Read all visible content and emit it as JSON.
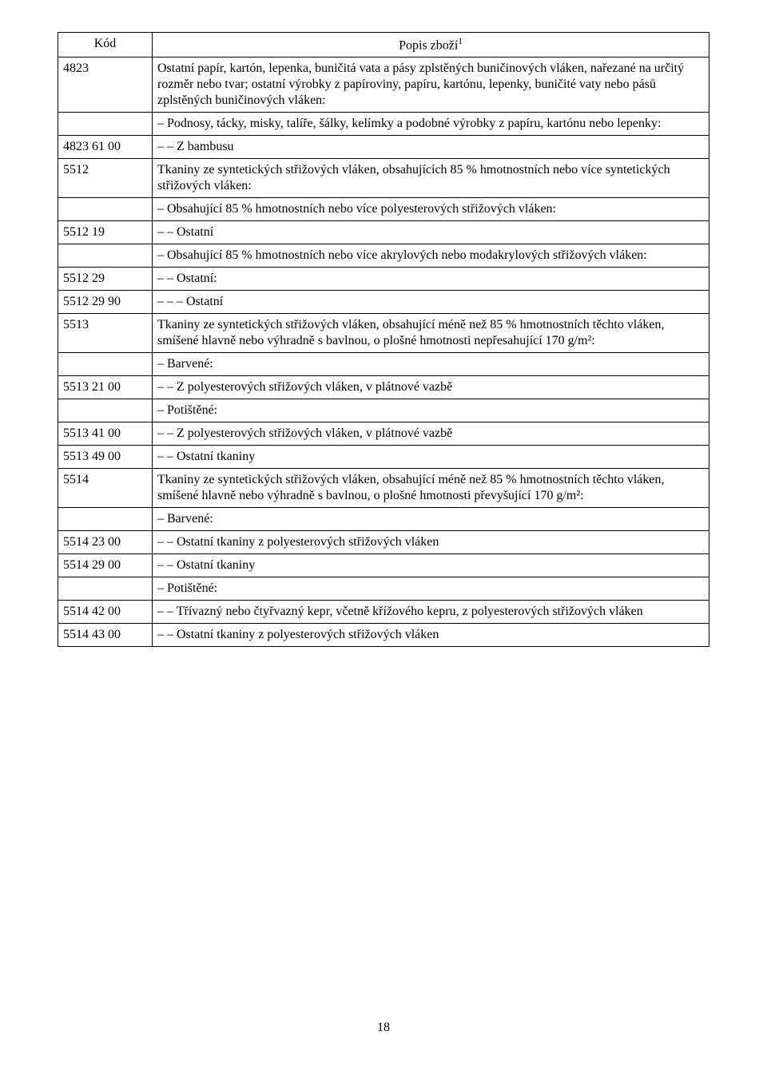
{
  "header": {
    "code_label": "Kód",
    "desc_label_prefix": "Popis zboží",
    "desc_label_sup": "1"
  },
  "rows": [
    {
      "code": "4823",
      "desc": "Ostatní papír, kartón, lepenka, buničitá vata a pásy zplstěných buničinových vláken, nařezané na určitý rozměr nebo tvar; ostatní výrobky z papíroviny, papíru, kartónu, lepenky, buničité vaty nebo pásů zplstěných buničinových vláken:"
    },
    {
      "code": "",
      "desc": "– Podnosy, tácky, misky, talíře, šálky, kelímky a podobné výrobky z papíru, kartónu nebo lepenky:"
    },
    {
      "code": "4823 61 00",
      "desc": "– – Z bambusu"
    },
    {
      "code": "5512",
      "desc": "Tkaniny ze syntetických střižových vláken, obsahujících 85 % hmotnostních nebo více syntetických střižových vláken:"
    },
    {
      "code": "",
      "desc": "– Obsahující 85 % hmotnostních nebo více polyesterových střižových vláken:"
    },
    {
      "code": "5512 19",
      "desc": "– – Ostatní"
    },
    {
      "code": "",
      "desc": "– Obsahující 85 % hmotnostních nebo více akrylových nebo modakrylových střižových vláken:"
    },
    {
      "code": "5512 29",
      "desc": "– – Ostatní:"
    },
    {
      "code": "5512 29 90",
      "desc": "– – – Ostatní"
    },
    {
      "code": "5513",
      "desc": "Tkaniny ze syntetických střižových vláken, obsahující méně než 85 % hmotnostních těchto vláken, smíšené hlavně nebo výhradně s bavlnou, o plošné hmotnosti nepřesahující 170 g/m²:"
    },
    {
      "code": "",
      "desc": "– Barvené:"
    },
    {
      "code": "5513 21 00",
      "desc": "– – Z polyesterových střižových vláken, v plátnové vazbě"
    },
    {
      "code": "",
      "desc": "– Potištěné:"
    },
    {
      "code": "5513 41 00",
      "desc": "– – Z polyesterových střižových vláken, v plátnové vazbě"
    },
    {
      "code": "5513 49 00",
      "desc": "– – Ostatní tkaniny"
    },
    {
      "code": "5514",
      "desc": "Tkaniny ze syntetických střižových vláken, obsahující méně než 85 % hmotnostních těchto vláken, smíšené hlavně nebo výhradně s bavlnou, o plošné hmotnosti převyšující 170 g/m²:"
    },
    {
      "code": "",
      "desc": "– Barvené:"
    },
    {
      "code": "5514 23 00",
      "desc": "– – Ostatní tkaniny z polyesterových střižových vláken"
    },
    {
      "code": "5514 29 00",
      "desc": "– – Ostatní tkaniny"
    },
    {
      "code": "",
      "desc": "– Potištěné:"
    },
    {
      "code": "5514 42 00",
      "desc": "– – Třívazný nebo čtyřvazný kepr, včetně křížového kepru, z polyesterových střižových vláken"
    },
    {
      "code": "5514 43 00",
      "desc": "– – Ostatní tkaniny z polyesterových střižových vláken"
    }
  ],
  "page_number": "18"
}
